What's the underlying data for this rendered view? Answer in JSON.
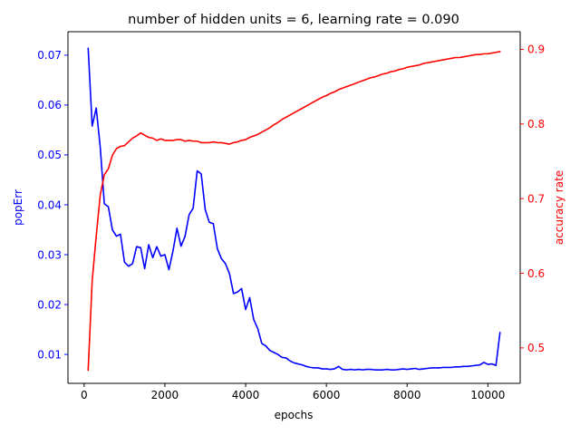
{
  "chart_data": {
    "type": "line",
    "title": "number of hidden units = 6, learning rate = 0.090",
    "xlabel": "epochs",
    "ylabel_left": "popErr",
    "ylabel_right": "accuracy rate",
    "xlim": [
      -400,
      10800
    ],
    "ylim_left": [
      0.0042,
      0.0747
    ],
    "ylim_right": [
      0.4525,
      0.9236
    ],
    "x_ticks": [
      0,
      2000,
      4000,
      6000,
      8000,
      10000
    ],
    "x_tick_labels": [
      "0",
      "2000",
      "4000",
      "6000",
      "8000",
      "10000"
    ],
    "y_left_ticks": [
      0.01,
      0.02,
      0.03,
      0.04,
      0.05,
      0.06,
      0.07
    ],
    "y_left_tick_labels": [
      "0.01",
      "0.02",
      "0.03",
      "0.04",
      "0.05",
      "0.06",
      "0.07"
    ],
    "y_right_ticks": [
      0.5,
      0.6,
      0.7,
      0.8,
      0.9
    ],
    "y_right_tick_labels": [
      "0.5",
      "0.6",
      "0.7",
      "0.8",
      "0.9"
    ],
    "grid": false,
    "colors": {
      "left": "#0000ff",
      "right": "#ff0000",
      "axis": "#000000"
    },
    "series": [
      {
        "axis": "left",
        "color": "#0000ff",
        "x": [
          100,
          200,
          300,
          400,
          500,
          600,
          700,
          800,
          900,
          1000,
          1100,
          1200,
          1300,
          1400,
          1500,
          1600,
          1700,
          1800,
          1900,
          2000,
          2100,
          2200,
          2300,
          2400,
          2500,
          2600,
          2700,
          2800,
          2900,
          3000,
          3100,
          3200,
          3300,
          3400,
          3500,
          3600,
          3700,
          3800,
          3900,
          4000,
          4100,
          4200,
          4300,
          4400,
          4500,
          4600,
          4700,
          4800,
          4900,
          5000,
          5100,
          5200,
          5300,
          5400,
          5500,
          5600,
          5700,
          5800,
          5900,
          6000,
          6100,
          6200,
          6300,
          6400,
          6500,
          6600,
          6700,
          6800,
          6900,
          7000,
          7100,
          7200,
          7300,
          7400,
          7500,
          7600,
          7700,
          7800,
          7900,
          8000,
          8100,
          8200,
          8300,
          8400,
          8500,
          8600,
          8700,
          8800,
          8900,
          9000,
          9100,
          9200,
          9300,
          9400,
          9500,
          9600,
          9700,
          9800,
          9900,
          10000,
          10100,
          10200,
          10300
        ],
        "y": [
          0.0714,
          0.0558,
          0.0594,
          0.0515,
          0.0402,
          0.0396,
          0.035,
          0.0337,
          0.0341,
          0.0285,
          0.0277,
          0.0282,
          0.0316,
          0.0314,
          0.0272,
          0.032,
          0.0294,
          0.0316,
          0.0297,
          0.03,
          0.027,
          0.0307,
          0.0353,
          0.0317,
          0.0337,
          0.038,
          0.0393,
          0.0468,
          0.0462,
          0.039,
          0.0365,
          0.0362,
          0.0312,
          0.0292,
          0.0282,
          0.0262,
          0.0222,
          0.0225,
          0.0232,
          0.019,
          0.0214,
          0.017,
          0.0152,
          0.0122,
          0.0117,
          0.0108,
          0.0104,
          0.01,
          0.0094,
          0.0093,
          0.0087,
          0.0083,
          0.0081,
          0.0079,
          0.0076,
          0.0074,
          0.0073,
          0.0073,
          0.0071,
          0.0071,
          0.007,
          0.0071,
          0.0076,
          0.007,
          0.0069,
          0.007,
          0.0069,
          0.007,
          0.0069,
          0.007,
          0.007,
          0.0069,
          0.0069,
          0.0069,
          0.007,
          0.0069,
          0.0069,
          0.007,
          0.0071,
          0.007,
          0.0071,
          0.0072,
          0.007,
          0.0071,
          0.0072,
          0.0073,
          0.0073,
          0.0073,
          0.0074,
          0.0074,
          0.0074,
          0.0075,
          0.0075,
          0.0076,
          0.0076,
          0.0077,
          0.0078,
          0.0079,
          0.0084,
          0.008,
          0.0081,
          0.0078,
          0.0144
        ]
      },
      {
        "axis": "right",
        "color": "#ff0000",
        "x": [
          100,
          200,
          300,
          400,
          500,
          600,
          700,
          800,
          900,
          1000,
          1100,
          1200,
          1300,
          1400,
          1500,
          1600,
          1700,
          1800,
          1900,
          2000,
          2100,
          2200,
          2300,
          2400,
          2500,
          2600,
          2700,
          2800,
          2900,
          3000,
          3100,
          3200,
          3300,
          3400,
          3500,
          3600,
          3700,
          3800,
          3900,
          4000,
          4100,
          4200,
          4300,
          4400,
          4500,
          4600,
          4700,
          4800,
          4900,
          5000,
          5100,
          5200,
          5300,
          5400,
          5500,
          5600,
          5700,
          5800,
          5900,
          6000,
          6100,
          6200,
          6300,
          6400,
          6500,
          6600,
          6700,
          6800,
          6900,
          7000,
          7100,
          7200,
          7300,
          7400,
          7500,
          7600,
          7700,
          7800,
          7900,
          8000,
          8100,
          8200,
          8300,
          8400,
          8500,
          8600,
          8700,
          8800,
          8900,
          9000,
          9100,
          9200,
          9300,
          9400,
          9500,
          9600,
          9700,
          9800,
          9900,
          10000,
          10100,
          10200,
          10300
        ],
        "y": [
          0.47,
          0.59,
          0.65,
          0.705,
          0.732,
          0.74,
          0.758,
          0.767,
          0.77,
          0.771,
          0.776,
          0.781,
          0.784,
          0.788,
          0.785,
          0.782,
          0.781,
          0.778,
          0.78,
          0.778,
          0.778,
          0.778,
          0.779,
          0.779,
          0.777,
          0.778,
          0.777,
          0.777,
          0.775,
          0.775,
          0.775,
          0.776,
          0.775,
          0.775,
          0.774,
          0.773,
          0.775,
          0.776,
          0.778,
          0.779,
          0.782,
          0.784,
          0.786,
          0.789,
          0.792,
          0.795,
          0.799,
          0.802,
          0.806,
          0.809,
          0.812,
          0.815,
          0.818,
          0.821,
          0.824,
          0.827,
          0.83,
          0.833,
          0.836,
          0.838,
          0.841,
          0.843,
          0.846,
          0.848,
          0.85,
          0.852,
          0.854,
          0.856,
          0.858,
          0.86,
          0.862,
          0.863,
          0.865,
          0.867,
          0.868,
          0.87,
          0.871,
          0.873,
          0.874,
          0.876,
          0.877,
          0.878,
          0.879,
          0.881,
          0.882,
          0.883,
          0.884,
          0.885,
          0.886,
          0.887,
          0.888,
          0.889,
          0.889,
          0.89,
          0.891,
          0.892,
          0.893,
          0.893,
          0.894,
          0.894,
          0.895,
          0.896,
          0.897
        ]
      }
    ]
  }
}
